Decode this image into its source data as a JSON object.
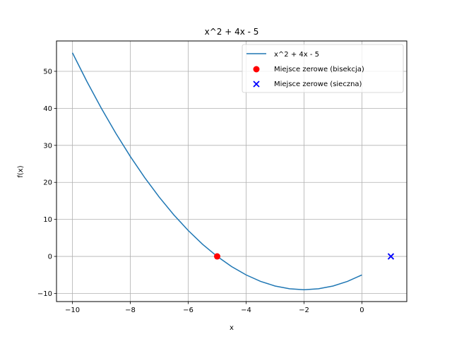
{
  "chart_data": {
    "type": "line",
    "title": "x^2 + 4x - 5",
    "xlabel": "x",
    "ylabel": "f(x)",
    "xlim": [
      -10.55,
      1.55
    ],
    "ylim": [
      -12.2,
      58.2
    ],
    "xticks": [
      -10,
      -8,
      -6,
      -4,
      -2,
      0
    ],
    "xtick_labels": [
      "−10",
      "−8",
      "−6",
      "−4",
      "−2",
      "0"
    ],
    "yticks": [
      -10,
      0,
      10,
      20,
      30,
      40,
      50
    ],
    "ytick_labels": [
      "−10",
      "0",
      "10",
      "20",
      "30",
      "40",
      "50"
    ],
    "grid": true,
    "legend_position": "upper-right",
    "series": [
      {
        "name": "x^2 + 4x - 5",
        "kind": "line",
        "color": "#1f77b4",
        "x": [
          -10,
          -9.5,
          -9,
          -8.5,
          -8,
          -7.5,
          -7,
          -6.5,
          -6,
          -5.5,
          -5,
          -4.5,
          -4,
          -3.5,
          -3,
          -2.5,
          -2,
          -1.5,
          -1,
          -0.5,
          0
        ],
        "y": [
          55,
          47.25,
          40,
          33.25,
          27,
          21.25,
          16,
          11.25,
          7,
          3.25,
          0,
          -2.75,
          -5,
          -6.75,
          -8,
          -8.75,
          -9,
          -8.75,
          -8,
          -6.75,
          -5
        ]
      },
      {
        "name": "Miejsce zerowe (bisekcja)",
        "kind": "scatter",
        "marker": "circle",
        "color": "#ff0000",
        "x": [
          -5
        ],
        "y": [
          0
        ]
      },
      {
        "name": "Miejsce zerowe (sieczna)",
        "kind": "scatter",
        "marker": "x",
        "color": "#0000ff",
        "x": [
          1
        ],
        "y": [
          0
        ]
      }
    ]
  }
}
